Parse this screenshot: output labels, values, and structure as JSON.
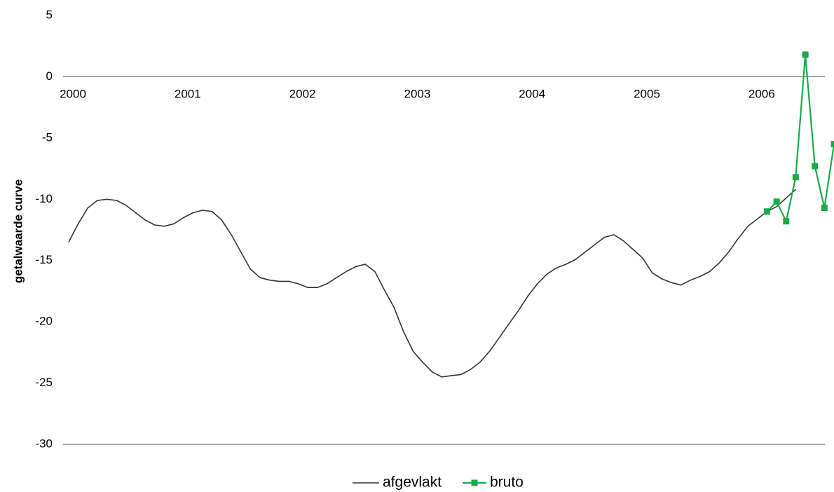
{
  "chart_data": {
    "type": "line",
    "title": "",
    "xlabel": "",
    "ylabel": "getalwaarde curve",
    "ylim": [
      -30,
      5
    ],
    "y_ticks": [
      "5",
      "0",
      "-5",
      "-10",
      "-15",
      "-20",
      "-25",
      "-30"
    ],
    "y_tick_values": [
      5,
      0,
      -5,
      -10,
      -15,
      -20,
      -25,
      -30
    ],
    "x_ticks": [
      "2000",
      "2001",
      "2002",
      "2003",
      "2004",
      "2005",
      "2006"
    ],
    "x_tick_values": [
      2000,
      2001,
      2002,
      2003,
      2004,
      2005,
      2006
    ],
    "xlim": [
      2000,
      2006.5
    ],
    "x_axis_at_y": 0,
    "grid": "horizontal lines at 0 and -30 only",
    "legend_position": "bottom-center",
    "series": [
      {
        "name": "afgevlakt",
        "color": "#333333",
        "marker": "none",
        "x": [
          2000.0,
          2000.083,
          2000.167,
          2000.25,
          2000.333,
          2000.417,
          2000.5,
          2000.583,
          2000.667,
          2000.75,
          2000.833,
          2000.917,
          2001.0,
          2001.083,
          2001.167,
          2001.25,
          2001.333,
          2001.417,
          2001.5,
          2001.583,
          2001.667,
          2001.75,
          2001.833,
          2001.917,
          2002.0,
          2002.083,
          2002.167,
          2002.25,
          2002.333,
          2002.417,
          2002.5,
          2002.583,
          2002.667,
          2002.75,
          2002.833,
          2002.917,
          2003.0,
          2003.083,
          2003.167,
          2003.25,
          2003.333,
          2003.417,
          2003.5,
          2003.583,
          2003.667,
          2003.75,
          2003.833,
          2003.917,
          2004.0,
          2004.083,
          2004.167,
          2004.25,
          2004.333,
          2004.417,
          2004.5,
          2004.583,
          2004.667,
          2004.75,
          2004.833,
          2004.917,
          2005.0,
          2005.083,
          2005.167,
          2005.25,
          2005.333,
          2005.417,
          2005.5,
          2005.583,
          2005.667,
          2005.75,
          2005.833,
          2005.917,
          2006.0,
          2006.083,
          2006.167,
          2006.25,
          2006.333
        ],
        "values": [
          -13.5,
          -12.0,
          -10.7,
          -10.1,
          -10.0,
          -10.1,
          -10.5,
          -11.1,
          -11.7,
          -12.1,
          -12.2,
          -12.0,
          -11.5,
          -11.1,
          -10.9,
          -11.0,
          -11.7,
          -12.9,
          -14.3,
          -15.7,
          -16.4,
          -16.6,
          -16.7,
          -16.7,
          -16.9,
          -17.2,
          -17.2,
          -16.9,
          -16.4,
          -15.9,
          -15.5,
          -15.3,
          -15.9,
          -17.4,
          -18.8,
          -20.8,
          -22.4,
          -23.3,
          -24.1,
          -24.5,
          -24.4,
          -24.3,
          -23.9,
          -23.3,
          -22.4,
          -21.3,
          -20.2,
          -19.1,
          -17.9,
          -16.9,
          -16.1,
          -15.6,
          -15.3,
          -14.9,
          -14.3,
          -13.7,
          -13.1,
          -12.9,
          -13.4,
          -14.1,
          -14.8,
          -16.0,
          -16.5,
          -16.8,
          -17.0,
          -16.6,
          -16.3,
          -15.9,
          -15.2,
          -14.3,
          -13.2,
          -12.2,
          -11.6,
          -11.0,
          -10.6,
          -9.9,
          -9.2
        ]
      },
      {
        "name": "bruto",
        "color": "#1aaa47",
        "marker": "square",
        "x": [
          2006.083,
          2006.167,
          2006.25,
          2006.333,
          2006.417,
          2006.5,
          2006.583,
          2006.667
        ],
        "values": [
          -11.0,
          -10.2,
          -11.8,
          -8.2,
          1.8,
          -7.3,
          -10.7,
          -5.5
        ]
      }
    ]
  }
}
